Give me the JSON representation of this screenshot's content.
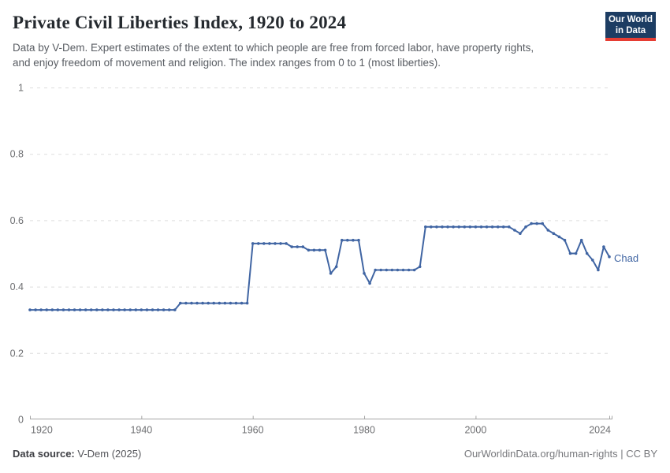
{
  "header": {
    "title": "Private Civil Liberties Index, 1920 to 2024",
    "subtitle_line1": "Data by V-Dem. Expert estimates of the extent to which people are free from forced labor, have property rights,",
    "subtitle_line2": "and enjoy freedom of movement and religion. The index ranges from 0 to 1 (most liberties).",
    "logo": {
      "line1": "Our World",
      "line2": "in Data",
      "bg_color": "#1d3d63",
      "bar_color": "#e63d33"
    }
  },
  "chart_data": {
    "type": "line",
    "title": "Private Civil Liberties Index, 1920 to 2024",
    "xlabel": "",
    "ylabel": "",
    "x_range": [
      1920,
      2024
    ],
    "ylim": [
      0,
      1
    ],
    "grid": "horizontal-dashed",
    "legend_position": "end-of-line",
    "marker": "circle",
    "x_ticks": [
      {
        "label": "1920",
        "value": 1920
      },
      {
        "label": "1940",
        "value": 1940
      },
      {
        "label": "1960",
        "value": 1960
      },
      {
        "label": "1980",
        "value": 1980
      },
      {
        "label": "2000",
        "value": 2000
      },
      {
        "label": "2024",
        "value": 2024
      }
    ],
    "y_ticks": [
      {
        "label": "0",
        "value": 0
      },
      {
        "label": "0.2",
        "value": 0.2
      },
      {
        "label": "0.4",
        "value": 0.4
      },
      {
        "label": "0.6",
        "value": 0.6
      },
      {
        "label": "0.8",
        "value": 0.8
      },
      {
        "label": "1",
        "value": 1
      }
    ],
    "series": [
      {
        "name": "Chad",
        "color": "#4065a3",
        "points": [
          [
            1920,
            0.33
          ],
          [
            1921,
            0.33
          ],
          [
            1922,
            0.33
          ],
          [
            1923,
            0.33
          ],
          [
            1924,
            0.33
          ],
          [
            1925,
            0.33
          ],
          [
            1926,
            0.33
          ],
          [
            1927,
            0.33
          ],
          [
            1928,
            0.33
          ],
          [
            1929,
            0.33
          ],
          [
            1930,
            0.33
          ],
          [
            1931,
            0.33
          ],
          [
            1932,
            0.33
          ],
          [
            1933,
            0.33
          ],
          [
            1934,
            0.33
          ],
          [
            1935,
            0.33
          ],
          [
            1936,
            0.33
          ],
          [
            1937,
            0.33
          ],
          [
            1938,
            0.33
          ],
          [
            1939,
            0.33
          ],
          [
            1940,
            0.33
          ],
          [
            1941,
            0.33
          ],
          [
            1942,
            0.33
          ],
          [
            1943,
            0.33
          ],
          [
            1944,
            0.33
          ],
          [
            1945,
            0.33
          ],
          [
            1946,
            0.33
          ],
          [
            1947,
            0.35
          ],
          [
            1948,
            0.35
          ],
          [
            1949,
            0.35
          ],
          [
            1950,
            0.35
          ],
          [
            1951,
            0.35
          ],
          [
            1952,
            0.35
          ],
          [
            1953,
            0.35
          ],
          [
            1954,
            0.35
          ],
          [
            1955,
            0.35
          ],
          [
            1956,
            0.35
          ],
          [
            1957,
            0.35
          ],
          [
            1958,
            0.35
          ],
          [
            1959,
            0.35
          ],
          [
            1960,
            0.53
          ],
          [
            1961,
            0.53
          ],
          [
            1962,
            0.53
          ],
          [
            1963,
            0.53
          ],
          [
            1964,
            0.53
          ],
          [
            1965,
            0.53
          ],
          [
            1966,
            0.53
          ],
          [
            1967,
            0.52
          ],
          [
            1968,
            0.52
          ],
          [
            1969,
            0.52
          ],
          [
            1970,
            0.51
          ],
          [
            1971,
            0.51
          ],
          [
            1972,
            0.51
          ],
          [
            1973,
            0.51
          ],
          [
            1974,
            0.44
          ],
          [
            1975,
            0.46
          ],
          [
            1976,
            0.54
          ],
          [
            1977,
            0.54
          ],
          [
            1978,
            0.54
          ],
          [
            1979,
            0.54
          ],
          [
            1980,
            0.44
          ],
          [
            1981,
            0.41
          ],
          [
            1982,
            0.45
          ],
          [
            1983,
            0.45
          ],
          [
            1984,
            0.45
          ],
          [
            1985,
            0.45
          ],
          [
            1986,
            0.45
          ],
          [
            1987,
            0.45
          ],
          [
            1988,
            0.45
          ],
          [
            1989,
            0.45
          ],
          [
            1990,
            0.46
          ],
          [
            1991,
            0.58
          ],
          [
            1992,
            0.58
          ],
          [
            1993,
            0.58
          ],
          [
            1994,
            0.58
          ],
          [
            1995,
            0.58
          ],
          [
            1996,
            0.58
          ],
          [
            1997,
            0.58
          ],
          [
            1998,
            0.58
          ],
          [
            1999,
            0.58
          ],
          [
            2000,
            0.58
          ],
          [
            2001,
            0.58
          ],
          [
            2002,
            0.58
          ],
          [
            2003,
            0.58
          ],
          [
            2004,
            0.58
          ],
          [
            2005,
            0.58
          ],
          [
            2006,
            0.58
          ],
          [
            2007,
            0.57
          ],
          [
            2008,
            0.56
          ],
          [
            2009,
            0.58
          ],
          [
            2010,
            0.59
          ],
          [
            2011,
            0.59
          ],
          [
            2012,
            0.59
          ],
          [
            2013,
            0.57
          ],
          [
            2014,
            0.56
          ],
          [
            2015,
            0.55
          ],
          [
            2016,
            0.54
          ],
          [
            2017,
            0.5
          ],
          [
            2018,
            0.5
          ],
          [
            2019,
            0.54
          ],
          [
            2020,
            0.5
          ],
          [
            2021,
            0.48
          ],
          [
            2022,
            0.45
          ],
          [
            2023,
            0.52
          ],
          [
            2024,
            0.49
          ]
        ]
      }
    ],
    "style": {
      "grid_color": "#dddddd",
      "axis_color": "#a5a5a5",
      "tick_label_color": "#6e6f72"
    }
  },
  "footer": {
    "source_label": "Data source:",
    "source_value": " V-Dem (2025)",
    "credit": "OurWorldinData.org/human-rights | CC BY"
  }
}
